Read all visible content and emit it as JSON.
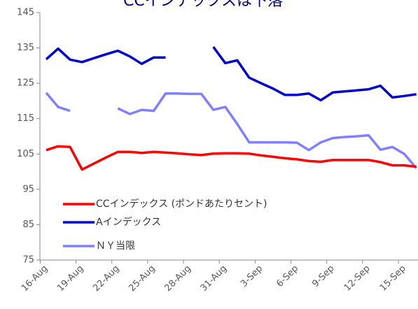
{
  "chart_data": {
    "type": "line",
    "title": "CCインデックスは下落",
    "categories": [
      "16-Aug",
      null,
      null,
      "19-Aug",
      null,
      null,
      "22-Aug",
      null,
      null,
      "25-Aug",
      null,
      null,
      "28-Aug",
      null,
      null,
      "31-Aug",
      null,
      null,
      "3-Sep",
      null,
      null,
      "6-Sep",
      null,
      null,
      "9-Sep",
      null,
      null,
      "12-Sep",
      null,
      null,
      "15-Sep",
      null
    ],
    "series": [
      {
        "name": "CCインデックス (ポンドあたりセント)",
        "color": "#ff0000",
        "values": [
          106.1,
          107.2,
          107,
          100.6,
          102.3,
          104,
          105.6,
          105.6,
          105.3,
          105.6,
          105.4,
          105.2,
          104.9,
          104.7,
          105.1,
          105.2,
          105.2,
          105.1,
          104.6,
          104.2,
          103.8,
          103.5,
          103,
          102.8,
          103.3,
          103.3,
          103.3,
          103.3,
          102.7,
          101.8,
          101.8,
          101.4
        ]
      },
      {
        "name": "Aインデックス",
        "color": "#0000cc",
        "values": [
          131.8,
          134.8,
          131.7,
          131,
          132.1,
          133.2,
          134.2,
          132.6,
          130.5,
          132.3,
          132.3,
          null,
          null,
          null,
          135.3,
          130.7,
          131.5,
          126.6,
          125,
          123.5,
          121.7,
          121.7,
          122.1,
          120.2,
          122.4,
          122.7,
          123,
          123.3,
          124.3,
          121,
          121.4,
          121.9
        ]
      },
      {
        "name": "ＮＹ当限",
        "color": "#8080ff",
        "values": [
          122.3,
          118.3,
          117.2,
          null,
          null,
          null,
          117.9,
          116.3,
          117.5,
          117.2,
          122.1,
          122.1,
          122,
          122,
          117.5,
          118.3,
          113.5,
          108.3,
          108.3,
          108.3,
          108.3,
          108.2,
          106.1,
          108.3,
          109.5,
          109.8,
          110,
          110.3,
          106.2,
          107,
          105,
          101
        ]
      }
    ],
    "ylim": [
      75,
      145
    ],
    "yticks": [
      75,
      85,
      95,
      105,
      115,
      125,
      135,
      145
    ]
  }
}
